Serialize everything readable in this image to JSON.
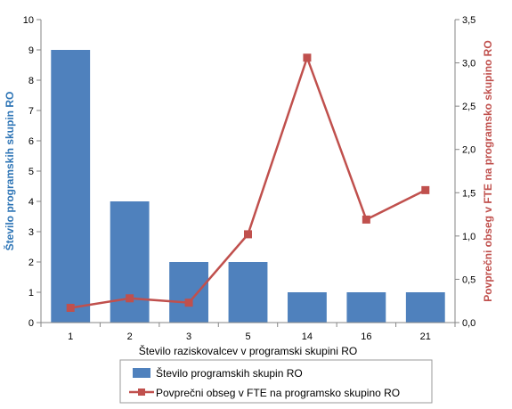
{
  "chart_data": {
    "type": "bar",
    "categories": [
      "1",
      "2",
      "3",
      "5",
      "14",
      "16",
      "21"
    ],
    "series": [
      {
        "name": "Število programskih skupin RO",
        "type": "bar",
        "axis": "left",
        "values": [
          9,
          4,
          2,
          2,
          1,
          1,
          1
        ],
        "color": "#4F81BD"
      },
      {
        "name": "Povprečni obseg v FTE na programsko skupino RO",
        "type": "line",
        "axis": "right",
        "values": [
          0.17,
          0.28,
          0.23,
          1.02,
          3.06,
          1.19,
          1.53
        ],
        "color": "#C0504D"
      }
    ],
    "xlabel": "Število raziskovalcev v programski skupini RO",
    "ylabel": "Število programskih skupin RO",
    "ylabel_right": "Povprečni obseg v FTE na programsko skupino RO",
    "ylim": [
      0,
      10
    ],
    "ylim_right": [
      0,
      3.5
    ],
    "yticks": [
      "0",
      "1",
      "2",
      "3",
      "4",
      "5",
      "6",
      "7",
      "8",
      "9",
      "10"
    ],
    "yticks_right": [
      "0,0",
      "0,5",
      "1,0",
      "1,5",
      "2,0",
      "2,5",
      "3,0",
      "3,5"
    ],
    "ylabel_color": "#2E75B6",
    "ylabel_right_color": "#C0504D",
    "grid": false,
    "legend": "bottom-center"
  }
}
